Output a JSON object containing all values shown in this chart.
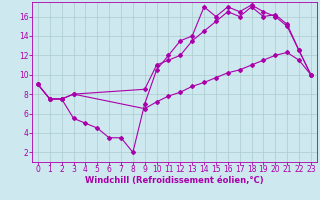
{
  "bg_color": "#cde8ee",
  "line_color": "#aa00aa",
  "grid_color": "#aacccc",
  "xlabel": "Windchill (Refroidissement éolien,°C)",
  "xlabel_fontsize": 6.0,
  "tick_fontsize": 5.5,
  "ylim": [
    1.0,
    17.5
  ],
  "xlim": [
    -0.5,
    23.5
  ],
  "yticks": [
    2,
    4,
    6,
    8,
    10,
    12,
    14,
    16
  ],
  "xticks": [
    0,
    1,
    2,
    3,
    4,
    5,
    6,
    7,
    8,
    9,
    10,
    11,
    12,
    13,
    14,
    15,
    16,
    17,
    18,
    19,
    20,
    21,
    22,
    23
  ],
  "line1_x": [
    0,
    1,
    2,
    3,
    4,
    5,
    6,
    7,
    8,
    9,
    10,
    11,
    12,
    13,
    14,
    15,
    16,
    17,
    18,
    19,
    20,
    21,
    22,
    23
  ],
  "line1_y": [
    9.0,
    7.5,
    7.5,
    5.5,
    5.0,
    4.5,
    3.5,
    3.5,
    2.0,
    7.0,
    10.5,
    12.0,
    13.5,
    14.0,
    17.0,
    16.0,
    17.0,
    16.5,
    17.2,
    16.5,
    16.0,
    15.0,
    12.5,
    10.0
  ],
  "line2_x": [
    0,
    1,
    2,
    3,
    9,
    10,
    11,
    12,
    13,
    14,
    15,
    16,
    17,
    18,
    19,
    20,
    21,
    22,
    23
  ],
  "line2_y": [
    9.0,
    7.5,
    7.5,
    8.0,
    8.5,
    11.0,
    11.5,
    12.0,
    13.5,
    14.5,
    15.5,
    16.5,
    16.0,
    17.0,
    16.0,
    16.2,
    15.2,
    12.5,
    10.0
  ],
  "line3_x": [
    0,
    1,
    2,
    3,
    9,
    10,
    11,
    12,
    13,
    14,
    15,
    16,
    17,
    18,
    19,
    20,
    21,
    22,
    23
  ],
  "line3_y": [
    9.0,
    7.5,
    7.5,
    8.0,
    6.5,
    7.2,
    7.8,
    8.2,
    8.8,
    9.2,
    9.7,
    10.2,
    10.5,
    11.0,
    11.5,
    12.0,
    12.3,
    11.5,
    10.0
  ]
}
